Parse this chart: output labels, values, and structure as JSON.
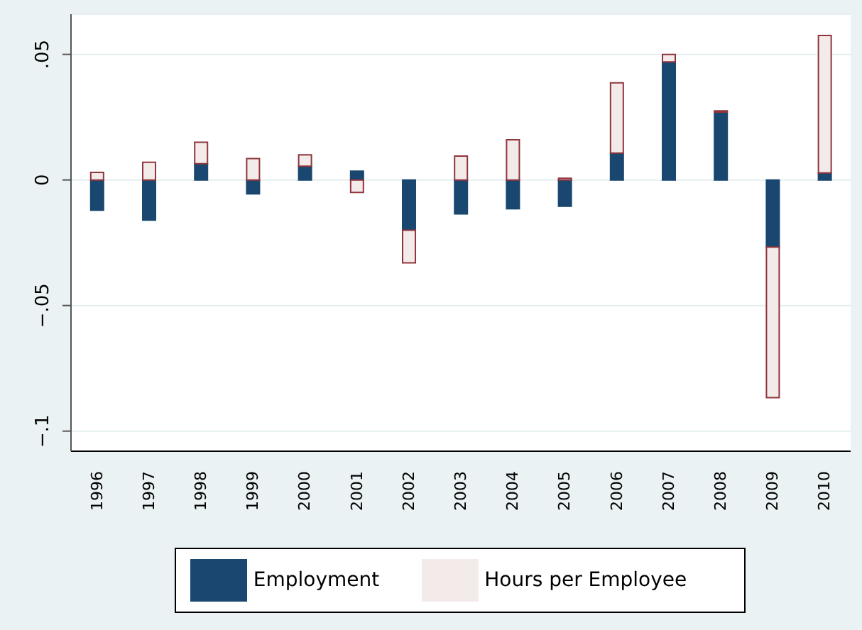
{
  "chart_data": {
    "type": "bar",
    "stacked": true,
    "categories": [
      "1996",
      "1997",
      "1998",
      "1999",
      "2000",
      "2001",
      "2002",
      "2003",
      "2004",
      "2005",
      "2006",
      "2007",
      "2008",
      "2009",
      "2010"
    ],
    "series": [
      {
        "name": "Employment",
        "color": "#1a476f",
        "values": [
          -0.012,
          -0.016,
          0.0065,
          -0.0055,
          0.0055,
          0.0035,
          -0.02,
          -0.0135,
          -0.0115,
          -0.0105,
          0.0107,
          0.047,
          0.027,
          -0.0267,
          0.0028
        ]
      },
      {
        "name": "Hours per Employee",
        "color": "#f3eaea",
        "values": [
          0.003,
          0.007,
          0.0085,
          0.0085,
          0.0045,
          -0.005,
          -0.013,
          0.0095,
          0.016,
          0.0007,
          0.028,
          0.003,
          0.0005,
          -0.06,
          0.0547
        ]
      }
    ],
    "ylim": [
      -0.108,
      0.066
    ],
    "yticks": [
      {
        "value": -0.1,
        "label": "−.1"
      },
      {
        "value": -0.05,
        "label": "−.05"
      },
      {
        "value": 0,
        "label": "0"
      },
      {
        "value": 0.05,
        "label": ".05"
      }
    ],
    "grid": "y",
    "legend": "bottom"
  }
}
